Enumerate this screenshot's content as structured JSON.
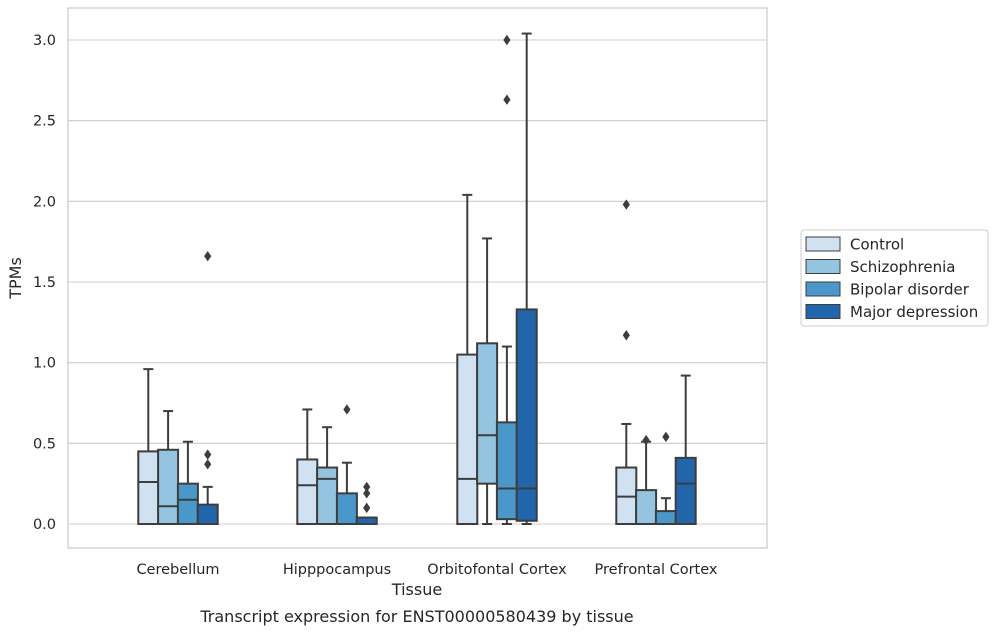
{
  "chart_data": {
    "type": "box",
    "title": "",
    "caption": "Transcript expression for ENST00000580439 by tissue",
    "xlabel": "Tissue",
    "ylabel": "TPMs",
    "ylim": [
      -0.15,
      3.2
    ],
    "yticks": [
      "0.0",
      "0.5",
      "1.0",
      "1.5",
      "2.0",
      "2.5",
      "3.0"
    ],
    "ytick_values": [
      0,
      0.5,
      1.0,
      1.5,
      2.0,
      2.5,
      3.0
    ],
    "grid": true,
    "legend_position": "right",
    "categories": [
      "Cerebellum",
      "Hipppocampus",
      "Orbitofontal Cortex",
      "Prefrontal Cortex"
    ],
    "series": [
      {
        "name": "Control",
        "color": "#d0e1f2",
        "boxes": [
          {
            "q1": 0.0,
            "median": 0.26,
            "q3": 0.45,
            "whisker_low": 0.0,
            "whisker_high": 0.96,
            "outliers": []
          },
          {
            "q1": 0.0,
            "median": 0.24,
            "q3": 0.4,
            "whisker_low": 0.0,
            "whisker_high": 0.71,
            "outliers": []
          },
          {
            "q1": 0.0,
            "median": 0.28,
            "q3": 1.05,
            "whisker_low": 0.0,
            "whisker_high": 2.04,
            "outliers": []
          },
          {
            "q1": 0.0,
            "median": 0.17,
            "q3": 0.35,
            "whisker_low": 0.0,
            "whisker_high": 0.62,
            "outliers": [
              1.17,
              1.98
            ]
          }
        ]
      },
      {
        "name": "Schizophrenia",
        "color": "#94c4df",
        "boxes": [
          {
            "q1": 0.0,
            "median": 0.11,
            "q3": 0.46,
            "whisker_low": 0.0,
            "whisker_high": 0.7,
            "outliers": []
          },
          {
            "q1": 0.0,
            "median": 0.28,
            "q3": 0.35,
            "whisker_low": 0.0,
            "whisker_high": 0.6,
            "outliers": []
          },
          {
            "q1": 0.25,
            "median": 0.55,
            "q3": 1.12,
            "whisker_low": 0.0,
            "whisker_high": 1.77,
            "outliers": []
          },
          {
            "q1": 0.0,
            "median": 0.0,
            "q3": 0.21,
            "whisker_low": 0.0,
            "whisker_high": 0.51,
            "outliers": [
              0.52
            ]
          }
        ]
      },
      {
        "name": "Bipolar disorder",
        "color": "#4a98c9",
        "boxes": [
          {
            "q1": 0.0,
            "median": 0.15,
            "q3": 0.25,
            "whisker_low": 0.0,
            "whisker_high": 0.51,
            "outliers": []
          },
          {
            "q1": 0.0,
            "median": 0.0,
            "q3": 0.19,
            "whisker_low": 0.0,
            "whisker_high": 0.38,
            "outliers": [
              0.71
            ]
          },
          {
            "q1": 0.03,
            "median": 0.22,
            "q3": 0.63,
            "whisker_low": 0.0,
            "whisker_high": 1.1,
            "outliers": [
              2.63,
              3.0
            ]
          },
          {
            "q1": 0.0,
            "median": 0.0,
            "q3": 0.08,
            "whisker_low": 0.0,
            "whisker_high": 0.16,
            "outliers": [
              0.54
            ]
          }
        ]
      },
      {
        "name": "Major depression",
        "color": "#2165ab",
        "boxes": [
          {
            "q1": 0.0,
            "median": 0.0,
            "q3": 0.12,
            "whisker_low": 0.0,
            "whisker_high": 0.23,
            "outliers": [
              0.37,
              0.43,
              1.66
            ]
          },
          {
            "q1": 0.0,
            "median": 0.0,
            "q3": 0.04,
            "whisker_low": 0.0,
            "whisker_high": 0.04,
            "outliers": [
              0.1,
              0.19,
              0.23
            ]
          },
          {
            "q1": 0.02,
            "median": 0.22,
            "q3": 1.33,
            "whisker_low": 0.0,
            "whisker_high": 3.04,
            "outliers": []
          },
          {
            "q1": 0.0,
            "median": 0.25,
            "q3": 0.41,
            "whisker_low": 0.0,
            "whisker_high": 0.92,
            "outliers": []
          }
        ]
      }
    ]
  }
}
